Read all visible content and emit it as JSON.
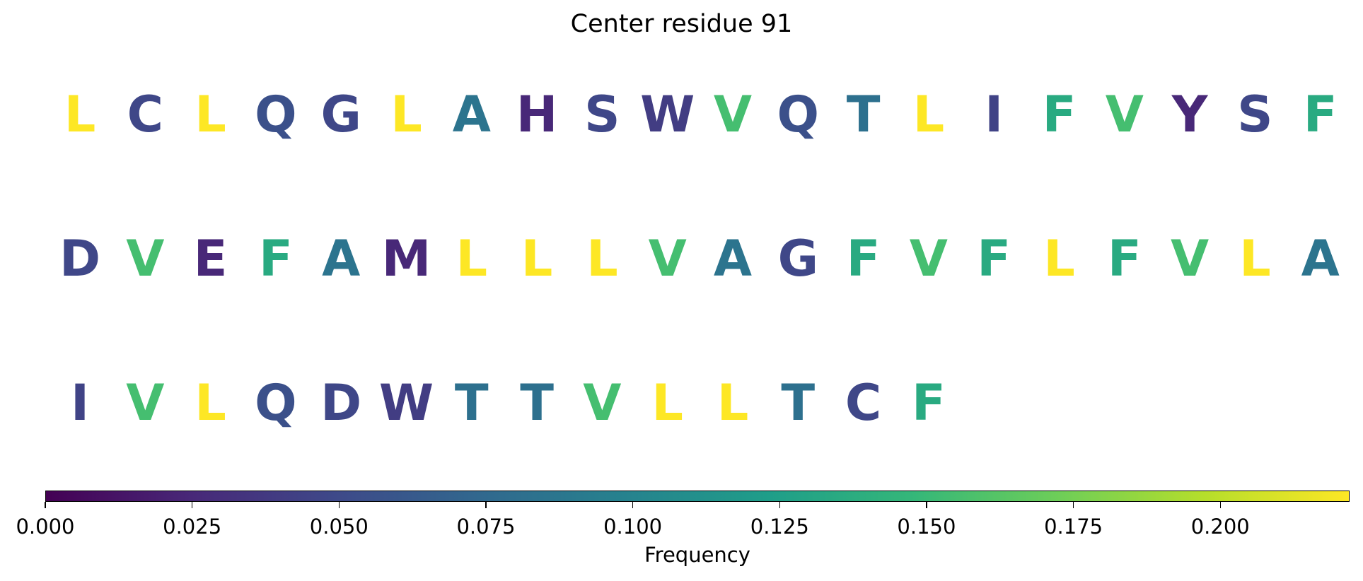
{
  "chart_data": {
    "type": "table",
    "title": "Center residue 91",
    "rows": [
      {
        "letters": [
          "L",
          "C",
          "L",
          "Q",
          "G",
          "L",
          "A",
          "H",
          "S",
          "W",
          "V",
          "Q",
          "T",
          "L",
          "I",
          "F",
          "V",
          "Y",
          "S",
          "F"
        ],
        "values": [
          0.222,
          0.048,
          0.222,
          0.055,
          0.048,
          0.222,
          0.085,
          0.025,
          0.048,
          0.04,
          0.155,
          0.055,
          0.082,
          0.222,
          0.045,
          0.135,
          0.155,
          0.025,
          0.048,
          0.135
        ]
      },
      {
        "letters": [
          "D",
          "V",
          "E",
          "F",
          "A",
          "M",
          "L",
          "L",
          "L",
          "V",
          "A",
          "G",
          "F",
          "V",
          "F",
          "L",
          "F",
          "V",
          "L",
          "A"
        ],
        "values": [
          0.048,
          0.155,
          0.025,
          0.135,
          0.085,
          0.025,
          0.222,
          0.222,
          0.222,
          0.155,
          0.085,
          0.048,
          0.135,
          0.155,
          0.135,
          0.222,
          0.135,
          0.155,
          0.222,
          0.085
        ]
      },
      {
        "letters": [
          "I",
          "V",
          "L",
          "Q",
          "D",
          "W",
          "T",
          "T",
          "V",
          "L",
          "L",
          "T",
          "C",
          "F"
        ],
        "values": [
          0.045,
          0.155,
          0.222,
          0.055,
          0.048,
          0.04,
          0.082,
          0.082,
          0.155,
          0.222,
          0.222,
          0.082,
          0.048,
          0.135
        ]
      }
    ],
    "colorbar": {
      "label": "Frequency",
      "colormap": "viridis",
      "range": [
        0,
        0.222
      ],
      "ticks": [
        0.0,
        0.025,
        0.05,
        0.075,
        0.1,
        0.125,
        0.15,
        0.175,
        0.2
      ],
      "tick_labels": [
        "0.000",
        "0.025",
        "0.050",
        "0.075",
        "0.100",
        "0.125",
        "0.150",
        "0.175",
        "0.200"
      ]
    }
  }
}
